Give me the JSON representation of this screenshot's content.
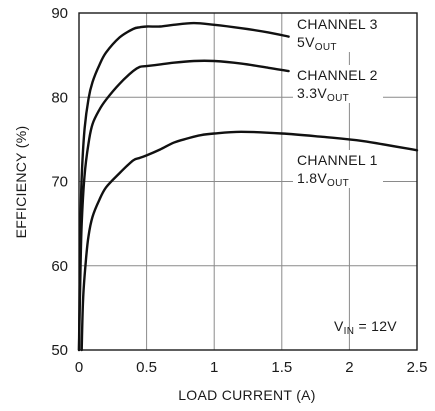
{
  "chart_data": {
    "type": "line",
    "xlabel": "LOAD CURRENT (A)",
    "ylabel": "EFFICIENCY (%)",
    "xlim": [
      0,
      2.5
    ],
    "ylim": [
      50,
      90
    ],
    "xticks": [
      "0",
      "0.5",
      "1",
      "1.5",
      "2",
      "2.5"
    ],
    "yticks": [
      "50",
      "60",
      "70",
      "80",
      "90"
    ],
    "grid": true,
    "series": [
      {
        "name": "CHANNEL 3",
        "sub_prefix": "5V",
        "sub_text": "OUT",
        "x": [
          0.0,
          0.01,
          0.02,
          0.04,
          0.07,
          0.1,
          0.15,
          0.2,
          0.3,
          0.4,
          0.45,
          0.5,
          0.6,
          0.7,
          0.85,
          1.0,
          1.2,
          1.4,
          1.55
        ],
        "y": [
          50,
          64,
          70.5,
          76,
          79.8,
          81.8,
          83.8,
          85.3,
          87.1,
          88.1,
          88.3,
          88.4,
          88.4,
          88.6,
          88.8,
          88.6,
          88.2,
          87.7,
          87.2
        ]
      },
      {
        "name": "CHANNEL 2",
        "sub_prefix": "3.3V",
        "sub_text": "OUT",
        "x": [
          0.0,
          0.01,
          0.02,
          0.04,
          0.07,
          0.1,
          0.15,
          0.2,
          0.3,
          0.4,
          0.45,
          0.5,
          0.6,
          0.7,
          0.85,
          1.0,
          1.2,
          1.4,
          1.55
        ],
        "y": [
          50,
          59,
          65,
          70.5,
          74.5,
          76.8,
          78.5,
          79.7,
          81.6,
          83.1,
          83.6,
          83.7,
          83.9,
          84.1,
          84.3,
          84.3,
          84.0,
          83.5,
          83.1
        ]
      },
      {
        "name": "CHANNEL 1",
        "sub_prefix": "1.8V",
        "sub_text": "OUT",
        "x": [
          0.02,
          0.03,
          0.05,
          0.07,
          0.1,
          0.15,
          0.2,
          0.3,
          0.4,
          0.45,
          0.5,
          0.6,
          0.7,
          0.8,
          0.9,
          1.0,
          1.2,
          1.5,
          1.8,
          2.1,
          2.5
        ],
        "y": [
          50,
          56,
          60.5,
          63.5,
          65.8,
          67.8,
          69.3,
          71,
          72.5,
          72.8,
          73.1,
          73.8,
          74.6,
          75.1,
          75.5,
          75.7,
          75.9,
          75.7,
          75.3,
          74.8,
          73.7
        ]
      }
    ],
    "annotation": {
      "prefix": "V",
      "sub": "IN",
      "suffix": " = 12V"
    }
  }
}
